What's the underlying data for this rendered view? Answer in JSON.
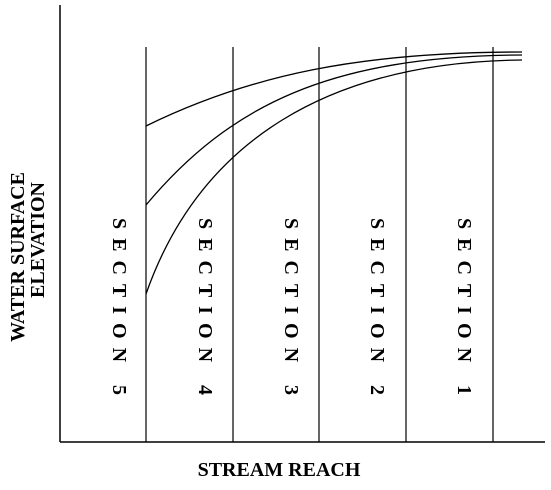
{
  "diagram": {
    "x_axis_label": "STREAM REACH",
    "y_axis_label_line1": "WATER SURFACE",
    "y_axis_label_line2": "ELEVATION",
    "sections": [
      {
        "label": "SECTION 5"
      },
      {
        "label": "SECTION 4"
      },
      {
        "label": "SECTION 3"
      },
      {
        "label": "SECTION 2"
      },
      {
        "label": "SECTION 1"
      }
    ],
    "curve_count": 3,
    "line_color": "#000000"
  }
}
